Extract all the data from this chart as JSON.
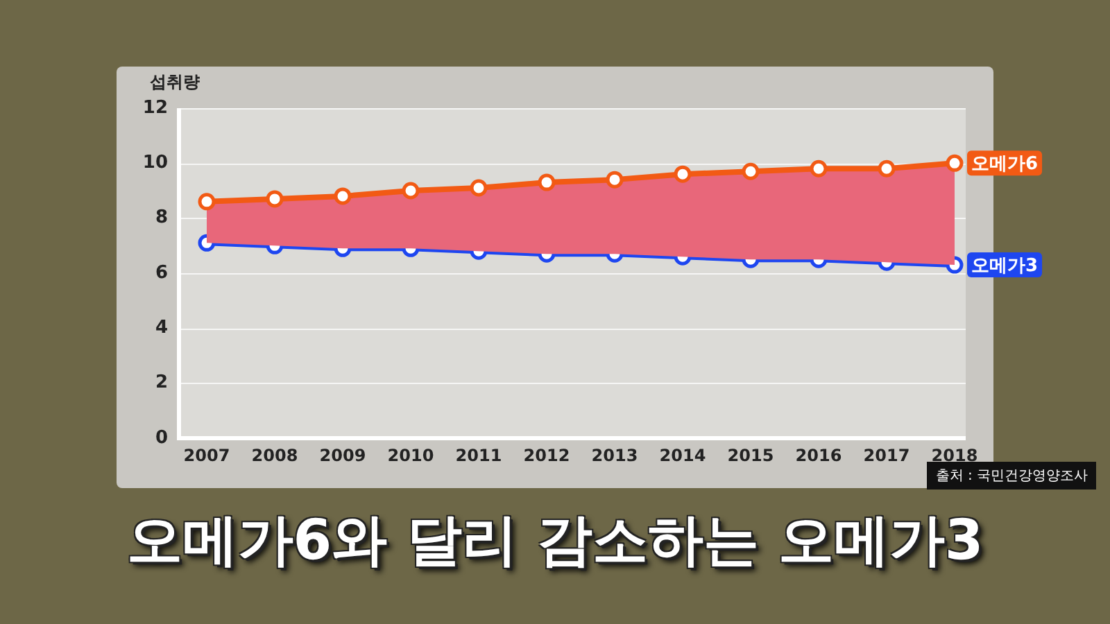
{
  "chart_data": {
    "type": "line",
    "title": "오메가6와 달리 감소하는 오메가3",
    "ylabel": "섭취량",
    "annotations": [
      "출처 : 국민건강영양조사"
    ],
    "categories": [
      "2007",
      "2008",
      "2009",
      "2010",
      "2011",
      "2012",
      "2013",
      "2014",
      "2015",
      "2016",
      "2017",
      "2018"
    ],
    "series": [
      {
        "name": "오메가6",
        "type": "area",
        "color": "#f25a14",
        "values": [
          8.6,
          8.7,
          8.8,
          9.0,
          9.1,
          9.3,
          9.4,
          9.6,
          9.7,
          9.8,
          9.8,
          10.0
        ]
      },
      {
        "name": "오메가3",
        "type": "line",
        "color": "#1e46f0",
        "values": [
          7.1,
          7.0,
          6.9,
          6.9,
          6.8,
          6.7,
          6.7,
          6.6,
          6.5,
          6.5,
          6.4,
          6.3
        ]
      }
    ],
    "ylim": [
      0,
      12
    ],
    "yticks": [
      0,
      2,
      4,
      6,
      8,
      10,
      12
    ],
    "grid": "y",
    "legend": false,
    "marker": "circle"
  }
}
